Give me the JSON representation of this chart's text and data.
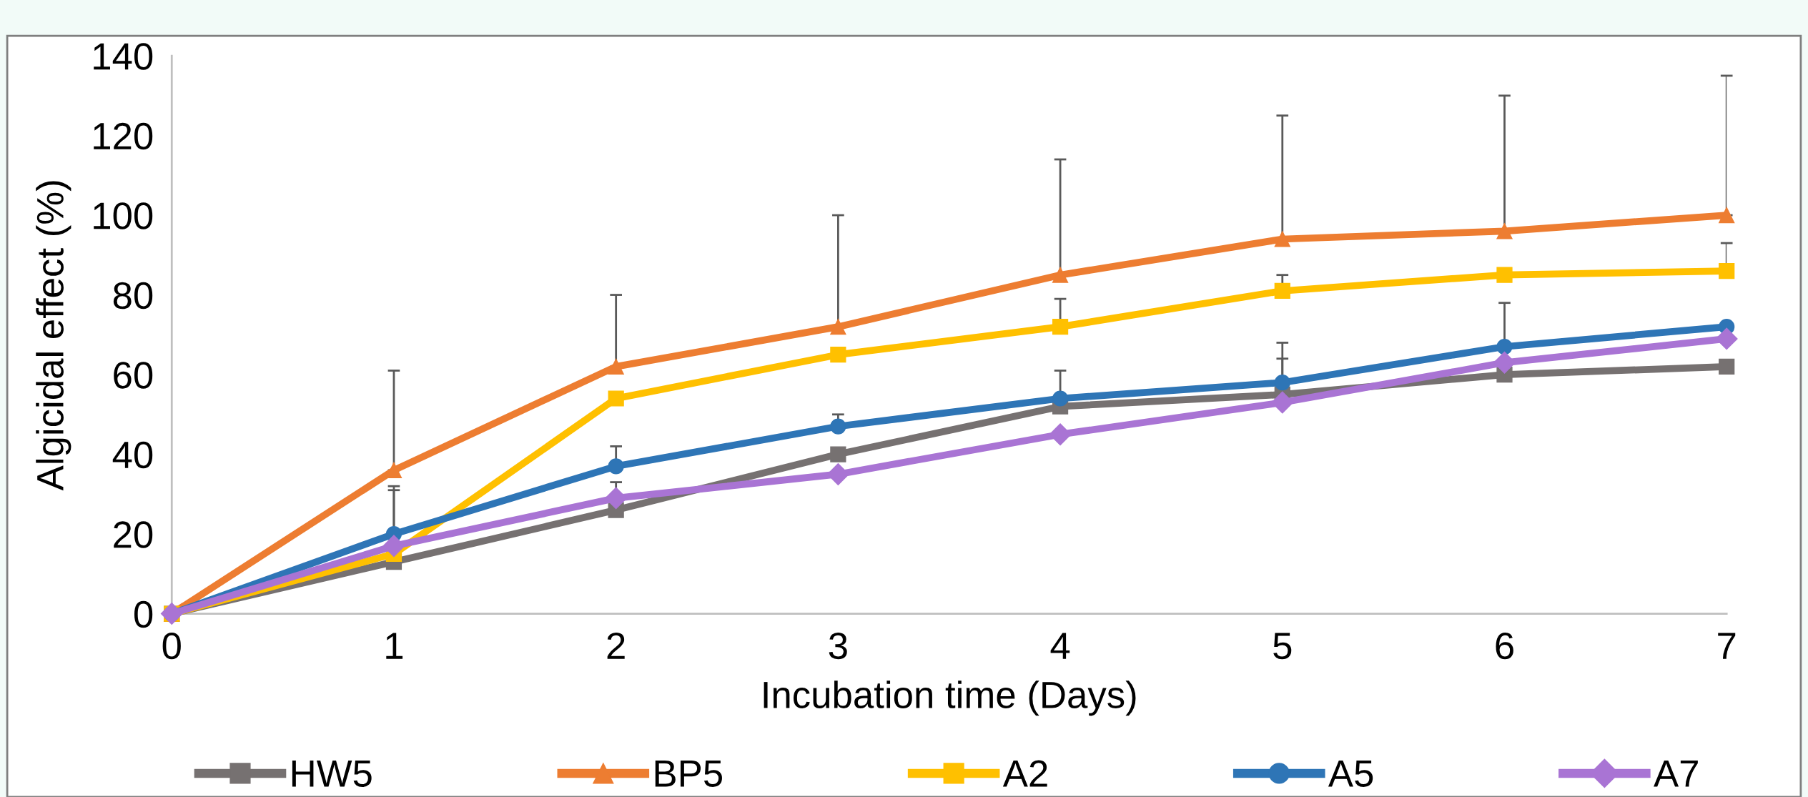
{
  "chart_data": {
    "type": "line",
    "xlabel": "Incubation time (Days)",
    "ylabel": "Algicidal effect (%)",
    "x": [
      0,
      1,
      2,
      3,
      4,
      5,
      6,
      7
    ],
    "xlim": [
      0,
      7
    ],
    "xticks": [
      0,
      1,
      2,
      3,
      4,
      5,
      6,
      7
    ],
    "ylim": [
      0,
      140
    ],
    "yticks": [
      0,
      20,
      40,
      60,
      80,
      100,
      120,
      140
    ],
    "grid": false,
    "legend": "bottom",
    "line_style": "solid",
    "series": [
      {
        "name": "HW5",
        "color": "#767171",
        "marker": "square",
        "values": [
          0,
          13,
          26,
          40,
          52,
          55,
          60,
          62
        ],
        "errors": [
          null,
          null,
          [
            26,
            33
          ],
          null,
          null,
          [
            55,
            64
          ],
          null,
          null
        ]
      },
      {
        "name": "BP5",
        "color": "#ed7d31",
        "marker": "triangle",
        "values": [
          0,
          36,
          62,
          72,
          85,
          94,
          96,
          100
        ],
        "errors": [
          null,
          [
            36,
            61
          ],
          [
            62,
            80
          ],
          [
            72,
            100
          ],
          [
            85,
            114
          ],
          [
            94,
            125
          ],
          [
            96,
            130
          ],
          [
            100,
            135
          ]
        ]
      },
      {
        "name": "A2",
        "color": "#ffc000",
        "marker": "square",
        "values": [
          0,
          15,
          54,
          65,
          72,
          81,
          85,
          86
        ],
        "errors": [
          null,
          [
            15,
            32
          ],
          null,
          null,
          [
            72,
            79
          ],
          [
            81,
            85
          ],
          null,
          [
            86,
            93
          ]
        ]
      },
      {
        "name": "A5",
        "color": "#2e75b6",
        "marker": "circle",
        "values": [
          0,
          20,
          37,
          47,
          54,
          58,
          67,
          72
        ],
        "errors": [
          null,
          [
            20,
            31
          ],
          [
            37,
            42
          ],
          [
            47,
            50
          ],
          [
            54,
            61
          ],
          [
            58,
            68
          ],
          [
            67,
            78
          ],
          null
        ]
      },
      {
        "name": "A7",
        "color": "#a974d4",
        "marker": "diamond",
        "values": [
          0,
          17,
          29,
          35,
          45,
          53,
          63,
          69
        ]
      }
    ]
  }
}
